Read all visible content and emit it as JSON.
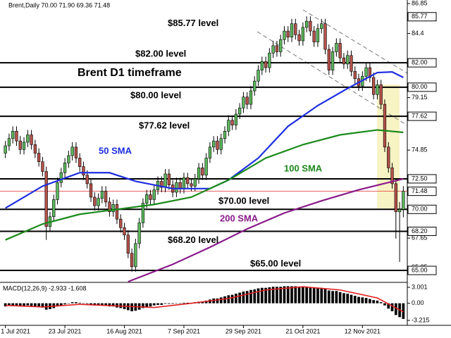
{
  "chart_data": {
    "type": "candlestick",
    "title": "Brent D1 timeframe",
    "header": "Brent,Daily 70.00 71.90 69.36 71.48",
    "xlim": [
      -0.5,
      107.5
    ],
    "xticks": [
      {
        "value": 0,
        "label": "1 Jul 2021"
      },
      {
        "value": 16,
        "label": "23 Jul 2021"
      },
      {
        "value": 32,
        "label": "16 Aug 2021"
      },
      {
        "value": 48,
        "label": "7 Sep 2021"
      },
      {
        "value": 64,
        "label": "29 Sep 2021"
      },
      {
        "value": 80,
        "label": "21 Oct 2021"
      },
      {
        "value": 96,
        "label": "12 Nov 2021"
      }
    ],
    "ylim": [
      64.08,
      87.14
    ],
    "yticks": [
      86.85,
      84.4,
      {
        "value": 79.15,
        "label": "79.15"
      },
      74.85,
      67.65,
      65.25
    ],
    "up_color": "#5cb85c",
    "down_color": "#b5524a",
    "ohlc": [
      [
        74.6,
        75.6,
        74.2,
        75.2
      ],
      [
        75.2,
        76.2,
        74.8,
        75.8
      ],
      [
        75.8,
        76.8,
        75.4,
        76.4
      ],
      [
        76.4,
        76.8,
        75.2,
        75.6
      ],
      [
        75.6,
        76.0,
        74.5,
        74.9
      ],
      [
        74.9,
        75.9,
        74.5,
        75.5
      ],
      [
        75.5,
        76.5,
        75.1,
        76.1
      ],
      [
        76.1,
        76.5,
        74.9,
        75.3
      ],
      [
        75.3,
        75.7,
        74.2,
        74.6
      ],
      [
        74.6,
        75.0,
        73.5,
        73.9
      ],
      [
        73.9,
        74.3,
        72.7,
        73.1
      ],
      [
        73.1,
        73.5,
        67.5,
        68.6
      ],
      [
        68.6,
        69.8,
        68.2,
        69.4
      ],
      [
        69.4,
        71.2,
        69.0,
        70.8
      ],
      [
        70.8,
        72.6,
        70.4,
        72.2
      ],
      [
        72.2,
        73.4,
        71.8,
        73.0
      ],
      [
        73.0,
        74.2,
        72.6,
        73.8
      ],
      [
        73.8,
        74.8,
        73.4,
        74.4
      ],
      [
        74.4,
        75.5,
        74.0,
        75.1
      ],
      [
        75.1,
        75.5,
        73.8,
        74.2
      ],
      [
        74.2,
        74.6,
        73.1,
        73.5
      ],
      [
        73.5,
        73.9,
        72.4,
        72.8
      ],
      [
        72.8,
        73.2,
        71.7,
        72.1
      ],
      [
        72.1,
        72.5,
        70.6,
        71.0
      ],
      [
        71.0,
        71.4,
        69.9,
        70.3
      ],
      [
        70.3,
        71.3,
        69.9,
        70.9
      ],
      [
        70.9,
        71.9,
        70.5,
        71.5
      ],
      [
        71.5,
        71.9,
        70.2,
        70.6
      ],
      [
        70.6,
        71.0,
        69.4,
        69.8
      ],
      [
        69.8,
        70.8,
        69.4,
        70.4
      ],
      [
        70.4,
        70.8,
        68.8,
        69.2
      ],
      [
        69.2,
        69.6,
        68.1,
        68.5
      ],
      [
        68.5,
        68.9,
        67.5,
        67.9
      ],
      [
        67.9,
        68.3,
        66.0,
        66.4
      ],
      [
        66.4,
        66.8,
        64.9,
        65.3
      ],
      [
        65.3,
        67.6,
        64.9,
        67.2
      ],
      [
        67.2,
        69.3,
        66.8,
        68.9
      ],
      [
        68.9,
        70.9,
        68.5,
        70.5
      ],
      [
        70.5,
        71.6,
        70.1,
        71.2
      ],
      [
        71.2,
        71.6,
        70.4,
        70.8
      ],
      [
        70.8,
        72.0,
        70.4,
        71.6
      ],
      [
        71.6,
        72.7,
        71.2,
        72.3
      ],
      [
        72.3,
        72.7,
        71.4,
        71.8
      ],
      [
        71.8,
        73.3,
        71.4,
        72.9
      ],
      [
        72.9,
        73.3,
        71.6,
        72.0
      ],
      [
        72.0,
        72.4,
        71.0,
        71.4
      ],
      [
        71.4,
        72.6,
        71.0,
        72.2
      ],
      [
        72.2,
        72.6,
        71.3,
        71.7
      ],
      [
        71.7,
        73.0,
        71.3,
        72.6
      ],
      [
        72.6,
        73.0,
        71.7,
        72.1
      ],
      [
        72.1,
        72.5,
        71.5,
        71.9
      ],
      [
        71.9,
        72.9,
        71.5,
        72.5
      ],
      [
        72.5,
        73.8,
        72.1,
        73.4
      ],
      [
        73.4,
        73.8,
        72.4,
        72.8
      ],
      [
        72.8,
        74.6,
        72.4,
        74.2
      ],
      [
        74.2,
        75.5,
        73.8,
        75.1
      ],
      [
        75.1,
        76.0,
        74.7,
        75.6
      ],
      [
        75.6,
        76.0,
        74.5,
        74.9
      ],
      [
        74.9,
        76.2,
        74.5,
        75.8
      ],
      [
        75.8,
        76.8,
        75.4,
        76.4
      ],
      [
        76.4,
        77.7,
        76.0,
        77.3
      ],
      [
        77.3,
        77.7,
        76.5,
        76.9
      ],
      [
        76.9,
        78.2,
        76.5,
        77.8
      ],
      [
        77.8,
        78.7,
        77.4,
        78.3
      ],
      [
        78.3,
        79.6,
        77.9,
        79.2
      ],
      [
        79.2,
        79.6,
        78.2,
        78.6
      ],
      [
        78.6,
        80.1,
        78.2,
        79.7
      ],
      [
        79.7,
        80.9,
        79.3,
        80.5
      ],
      [
        80.5,
        81.8,
        80.1,
        81.4
      ],
      [
        81.4,
        82.5,
        81.0,
        82.1
      ],
      [
        82.1,
        82.5,
        81.2,
        81.6
      ],
      [
        81.6,
        83.2,
        81.2,
        82.8
      ],
      [
        82.8,
        83.8,
        82.4,
        83.4
      ],
      [
        83.4,
        83.8,
        82.5,
        82.9
      ],
      [
        82.9,
        84.3,
        82.5,
        83.9
      ],
      [
        83.9,
        85.0,
        83.5,
        84.6
      ],
      [
        84.6,
        85.0,
        83.7,
        84.1
      ],
      [
        84.1,
        85.6,
        83.7,
        85.2
      ],
      [
        85.2,
        85.6,
        83.9,
        84.3
      ],
      [
        84.3,
        84.7,
        83.4,
        83.8
      ],
      [
        83.8,
        85.3,
        83.4,
        84.9
      ],
      [
        84.9,
        85.8,
        84.5,
        85.4
      ],
      [
        85.4,
        85.8,
        84.2,
        84.6
      ],
      [
        84.6,
        85.0,
        83.3,
        83.7
      ],
      [
        83.7,
        85.2,
        83.3,
        84.8
      ],
      [
        84.8,
        85.6,
        84.4,
        85.2
      ],
      [
        85.2,
        85.6,
        82.7,
        83.1
      ],
      [
        83.1,
        83.5,
        81.0,
        81.4
      ],
      [
        81.4,
        83.3,
        81.0,
        82.9
      ],
      [
        82.9,
        84.0,
        82.5,
        83.6
      ],
      [
        83.6,
        84.0,
        82.0,
        82.4
      ],
      [
        82.4,
        82.8,
        81.5,
        81.9
      ],
      [
        81.9,
        83.0,
        81.5,
        82.6
      ],
      [
        82.6,
        83.0,
        80.9,
        81.3
      ],
      [
        81.3,
        81.7,
        80.3,
        80.7
      ],
      [
        80.7,
        81.1,
        79.7,
        80.1
      ],
      [
        80.1,
        81.3,
        79.7,
        80.9
      ],
      [
        80.9,
        82.0,
        80.5,
        81.6
      ],
      [
        81.6,
        82.0,
        80.4,
        80.8
      ],
      [
        80.8,
        81.2,
        79.0,
        79.4
      ],
      [
        79.4,
        80.6,
        79.0,
        80.2
      ],
      [
        80.2,
        80.6,
        78.2,
        78.6
      ],
      [
        78.6,
        79.0,
        74.7,
        75.1
      ],
      [
        75.1,
        75.5,
        73.0,
        73.4
      ],
      [
        73.4,
        73.8,
        71.7,
        72.1
      ],
      [
        72.1,
        72.5,
        67.6,
        69.8
      ],
      [
        69.8,
        70.6,
        65.7,
        70.0
      ],
      [
        70.0,
        71.9,
        69.36,
        71.48
      ]
    ],
    "series": [
      {
        "name": "50 SMA",
        "color": "#1c2ee0",
        "x": [
          0,
          10,
          20,
          28,
          35,
          45,
          55,
          60,
          68,
          76,
          84,
          92,
          100,
          104,
          107
        ],
        "values": [
          70.1,
          71.9,
          73.0,
          73.0,
          72.3,
          71.7,
          71.7,
          72.4,
          74.2,
          76.8,
          78.5,
          79.9,
          81.2,
          81.25,
          80.8
        ]
      },
      {
        "name": "100 SMA",
        "color": "#1a8a1a",
        "x": [
          0,
          10,
          20,
          30,
          40,
          50,
          60,
          70,
          80,
          90,
          100,
          107
        ],
        "values": [
          67.5,
          68.8,
          69.6,
          70.0,
          70.4,
          71.0,
          72.4,
          74.2,
          75.3,
          76.1,
          76.5,
          76.3
        ]
      },
      {
        "name": "200 SMA",
        "color": "#8a1a8a",
        "x": [
          33,
          45,
          55,
          65,
          75,
          85,
          95,
          107
        ],
        "values": [
          64.08,
          65.5,
          66.9,
          68.4,
          69.7,
          70.7,
          71.6,
          72.5
        ]
      }
    ],
    "levels": [
      {
        "value": 85.77,
        "label": "$85.77 level",
        "axis_label": "85.77",
        "line": false
      },
      {
        "value": 82,
        "label": "$82.00 level",
        "axis_label": "82.00",
        "line": true
      },
      {
        "value": 80,
        "label": "$80.00 level",
        "axis_label": "80.00",
        "line": true
      },
      {
        "value": 77.62,
        "label": "$77.62 level",
        "axis_label": "77.62",
        "line": true
      },
      {
        "value": 72.5,
        "label": "",
        "axis_label": "72.50",
        "line": true
      },
      {
        "value": 70,
        "label": "$70.00 level",
        "axis_label": "70.00",
        "line": true
      },
      {
        "value": 68.2,
        "label": "$68.20 level",
        "axis_label": "68.20",
        "line": true
      },
      {
        "value": 65,
        "label": "$65.00 level",
        "axis_label": "65.00",
        "line": true
      }
    ],
    "last_price": {
      "value": 71.48,
      "label": "71.48",
      "color": "#e03030"
    },
    "macd": {
      "label": "MACD(12,26,9) -2.933 -1.608",
      "ylim": [
        -4.14,
        3.79
      ],
      "yticks": [
        {
          "value": 3.001,
          "label": "3.001"
        },
        {
          "value": 0,
          "label": "0.00"
        },
        {
          "value": -3.215,
          "label": "-3.215"
        }
      ],
      "histogram": [
        -0.6,
        -0.5,
        -0.4,
        -0.4,
        -0.5,
        -0.5,
        -0.4,
        -0.5,
        -0.6,
        -0.7,
        -0.8,
        -1.2,
        -1.1,
        -0.9,
        -0.6,
        -0.4,
        -0.2,
        0.0,
        0.2,
        0.2,
        0.1,
        0.0,
        -0.1,
        -0.3,
        -0.4,
        -0.4,
        -0.3,
        -0.4,
        -0.6,
        -0.6,
        -0.8,
        -0.9,
        -1.1,
        -1.3,
        -1.5,
        -1.4,
        -1.2,
        -0.9,
        -0.7,
        -0.6,
        -0.4,
        -0.3,
        -0.3,
        -0.1,
        -0.1,
        -0.1,
        0.0,
        0.0,
        0.1,
        0.1,
        0.1,
        0.2,
        0.3,
        0.3,
        0.5,
        0.7,
        0.9,
        0.9,
        1.1,
        1.3,
        1.5,
        1.6,
        1.8,
        2.0,
        2.2,
        2.3,
        2.5,
        2.6,
        2.8,
        2.9,
        2.9,
        3.0,
        3.1,
        3.1,
        3.1,
        3.2,
        3.2,
        3.2,
        3.2,
        3.1,
        3.1,
        3.1,
        3.0,
        2.9,
        2.9,
        2.9,
        2.7,
        2.4,
        2.3,
        2.3,
        2.1,
        1.9,
        1.8,
        1.6,
        1.4,
        1.2,
        1.1,
        1.0,
        0.8,
        0.6,
        0.5,
        0.2,
        -0.4,
        -1.0,
        -1.5,
        -2.2,
        -2.6,
        -2.933
      ],
      "signal": {
        "color": "#e02020",
        "x": [
          0,
          10,
          20,
          30,
          40,
          50,
          60,
          70,
          80,
          90,
          100,
          107
        ],
        "values": [
          -0.4,
          -0.7,
          -0.2,
          -0.5,
          -0.8,
          0.0,
          0.9,
          2.5,
          3.1,
          2.5,
          1.0,
          -1.608
        ]
      }
    }
  }
}
